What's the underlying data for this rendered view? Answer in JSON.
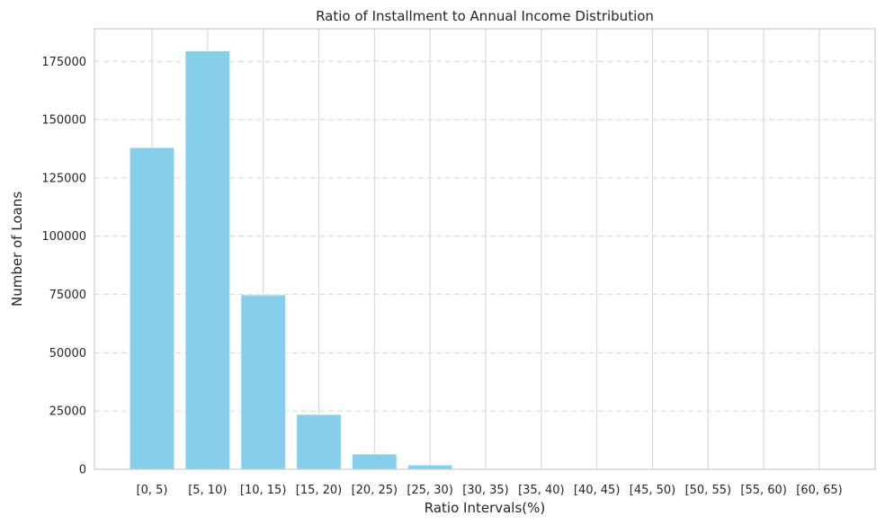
{
  "chart_data": {
    "type": "bar",
    "title": "Ratio of Installment to Annual Income Distribution",
    "xlabel": "Ratio Intervals(%)",
    "ylabel": "Number of Loans",
    "categories": [
      "[0, 5)",
      "[5, 10)",
      "[10, 15)",
      "[15, 20)",
      "[20, 25)",
      "[25, 30)",
      "[30, 35)",
      "[35, 40)",
      "[40, 45)",
      "[45, 50)",
      "[50, 55)",
      "[55, 60)",
      "[60, 65)"
    ],
    "values": [
      138000,
      179500,
      74800,
      23500,
      6500,
      1800,
      300,
      120,
      60,
      40,
      20,
      10,
      5
    ],
    "ylim": [
      0,
      189000
    ],
    "yticks": [
      0,
      25000,
      50000,
      75000,
      100000,
      125000,
      150000,
      175000
    ],
    "ytick_labels": [
      "0",
      "25000",
      "50000",
      "75000",
      "100000",
      "125000",
      "150000",
      "175000"
    ],
    "grid": {
      "x": true,
      "y": true,
      "y_style": "dashed"
    },
    "colors": {
      "bar": "#87ceeb",
      "grid": "#d9d9d9",
      "spine": "#cccccc",
      "text": "#262626"
    }
  }
}
